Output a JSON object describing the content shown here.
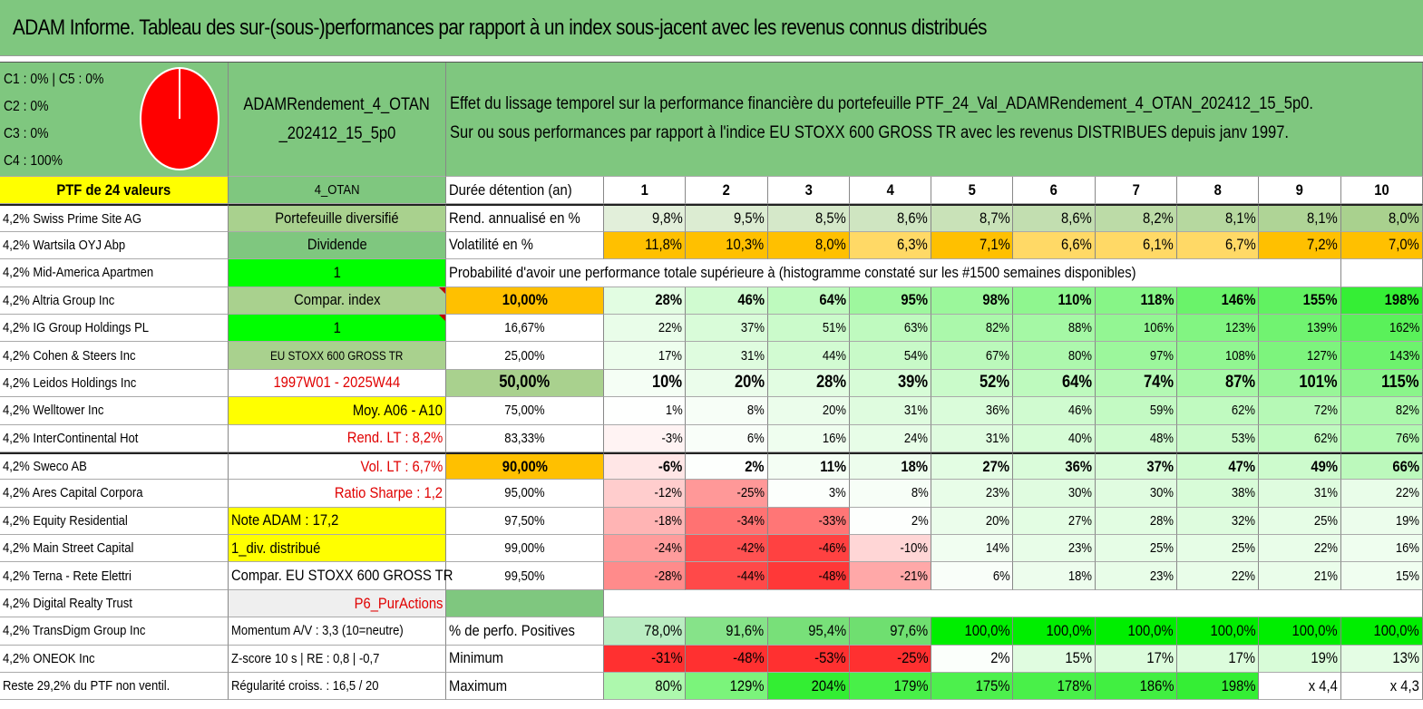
{
  "title": "ADAM Informe. Tableau des sur-(sous-)performances par rapport à un index sous-jacent avec les revenus connus distribués",
  "pie": {
    "legend": [
      "C1 : 0% | C5 : 0%",
      "C2 : 0%",
      "C3 : 0%",
      "C4 : 100%"
    ],
    "slices": [
      {
        "name": "C1",
        "percent": 0,
        "color": "#ffffff"
      },
      {
        "name": "C5",
        "percent": 0,
        "color": "#ffffff"
      },
      {
        "name": "C2",
        "percent": 0,
        "color": "#ffffff"
      },
      {
        "name": "C3",
        "percent": 0,
        "color": "#ffffff"
      },
      {
        "name": "C4",
        "percent": 100,
        "color": "#ff0000"
      }
    ]
  },
  "fund": {
    "name_line1": "ADAMRendement_4_OTAN",
    "name_line2": "_202412_15_5p0",
    "description_line1": "Effet du lissage temporel sur la performance financière du portefeuille PTF_24_Val_ADAMRendement_4_OTAN_202412_15_5p0.",
    "description_line2": "Sur ou sous performances par rapport à l'indice EU STOXX 600 GROSS TR avec les revenus DISTRIBUES depuis janv 1997."
  },
  "holdings": {
    "header": "PTF de 24 valeurs",
    "items": [
      "4,2% Swiss Prime Site AG",
      "4,2% Wartsila OYJ Abp",
      "4,2% Mid-America Apartmen",
      "4,2% Altria Group Inc",
      "4,2% IG Group Holdings PL",
      "4,2% Cohen & Steers Inc",
      "4,2% Leidos Holdings Inc",
      "4,2% Welltower Inc",
      "4,2% InterContinental Hot",
      "4,2% Sweco AB",
      "4,2% Ares Capital Corpora",
      "4,2% Equity Residential",
      "4,2% Main Street Capital",
      "4,2% Terna - Rete Elettri",
      "4,2% Digital Realty Trust",
      "4,2% TransDigm Group Inc",
      "4,2% ONEOK Inc",
      "Reste 29,2% du PTF non ventil."
    ]
  },
  "info": {
    "code": "4_OTAN",
    "type": "Portefeuille diversifié",
    "dividend_label": "Dividende",
    "value_one_a": "1",
    "compar_index_label": "Compar. index",
    "value_one_b": "1",
    "index_name": "EU STOXX 600 GROSS TR",
    "period": "1997W01 - 2025W44",
    "moy": "Moy. A06 - A10",
    "rend_lt": "Rend. LT : 8,2%",
    "vol_lt": "Vol. LT : 6,7%",
    "sharpe": "Ratio Sharpe : 1,2",
    "note": "Note ADAM : 17,2",
    "div": "1_div. distribué",
    "compar_full": "Compar. EU STOXX 600 GROSS TR",
    "p6": "P6_PurActions",
    "momentum": "Momentum A/V : 3,3 (10=neutre)",
    "zscore": "Z-score 10 s | RE : 0,8 | -0,7",
    "regularite": "Régularité croiss. : 16,5 / 20"
  },
  "table": {
    "duration_label": "Durée détention (an)",
    "years": [
      "1",
      "2",
      "3",
      "4",
      "5",
      "6",
      "7",
      "8",
      "9",
      "10"
    ],
    "rend_label": "Rend. annualisé en %",
    "rend": [
      "9,8%",
      "9,5%",
      "8,5%",
      "8,6%",
      "8,7%",
      "8,6%",
      "8,2%",
      "8,1%",
      "8,1%",
      "8,0%"
    ],
    "vol_label": "Volatilité en %",
    "vol": [
      "11,8%",
      "10,3%",
      "8,0%",
      "6,3%",
      "7,1%",
      "6,6%",
      "6,1%",
      "6,7%",
      "7,2%",
      "7,0%"
    ],
    "prob_label": "Probabilité d'avoir une performance totale supérieure à (histogramme constaté sur les #1500 semaines disponibles)",
    "prob_rows": [
      {
        "p": "10,00%",
        "v": [
          "28%",
          "46%",
          "64%",
          "95%",
          "98%",
          "110%",
          "118%",
          "146%",
          "155%",
          "198%"
        ]
      },
      {
        "p": "16,67%",
        "v": [
          "22%",
          "37%",
          "51%",
          "63%",
          "82%",
          "88%",
          "106%",
          "123%",
          "139%",
          "162%"
        ]
      },
      {
        "p": "25,00%",
        "v": [
          "17%",
          "31%",
          "44%",
          "54%",
          "67%",
          "80%",
          "97%",
          "108%",
          "127%",
          "143%"
        ]
      },
      {
        "p": "50,00%",
        "v": [
          "10%",
          "20%",
          "28%",
          "39%",
          "52%",
          "64%",
          "74%",
          "87%",
          "101%",
          "115%"
        ]
      },
      {
        "p": "75,00%",
        "v": [
          "1%",
          "8%",
          "20%",
          "31%",
          "36%",
          "46%",
          "59%",
          "62%",
          "72%",
          "82%"
        ]
      },
      {
        "p": "83,33%",
        "v": [
          "-3%",
          "6%",
          "16%",
          "24%",
          "31%",
          "40%",
          "48%",
          "53%",
          "62%",
          "76%"
        ]
      },
      {
        "p": "90,00%",
        "v": [
          "-6%",
          "2%",
          "11%",
          "18%",
          "27%",
          "36%",
          "37%",
          "47%",
          "49%",
          "66%"
        ]
      },
      {
        "p": "95,00%",
        "v": [
          "-12%",
          "-25%",
          "3%",
          "8%",
          "23%",
          "30%",
          "30%",
          "38%",
          "31%",
          "22%"
        ]
      },
      {
        "p": "97,50%",
        "v": [
          "-18%",
          "-34%",
          "-33%",
          "2%",
          "20%",
          "27%",
          "28%",
          "32%",
          "25%",
          "19%"
        ]
      },
      {
        "p": "99,00%",
        "v": [
          "-24%",
          "-42%",
          "-46%",
          "-10%",
          "14%",
          "23%",
          "25%",
          "25%",
          "22%",
          "16%"
        ]
      },
      {
        "p": "99,50%",
        "v": [
          "-28%",
          "-44%",
          "-48%",
          "-21%",
          "6%",
          "18%",
          "23%",
          "22%",
          "21%",
          "15%"
        ]
      }
    ],
    "pos_label": "% de perfo. Positives",
    "pos": [
      "78,0%",
      "91,6%",
      "95,4%",
      "97,6%",
      "100,0%",
      "100,0%",
      "100,0%",
      "100,0%",
      "100,0%",
      "100,0%"
    ],
    "min_label": "Minimum",
    "min": [
      "-31%",
      "-48%",
      "-53%",
      "-25%",
      "2%",
      "15%",
      "17%",
      "17%",
      "19%",
      "13%"
    ],
    "max_label": "Maximum",
    "max": [
      "80%",
      "129%",
      "204%",
      "179%",
      "175%",
      "178%",
      "186%",
      "198%",
      "x 4,4",
      "x 4,3"
    ]
  },
  "colors": {
    "header_green": "#7fc77f",
    "mid_green": "#a9d18e",
    "bright_green": "#00ff00",
    "yellow": "#ffff00",
    "orange": "#ffc000",
    "red": "#ff0000"
  }
}
